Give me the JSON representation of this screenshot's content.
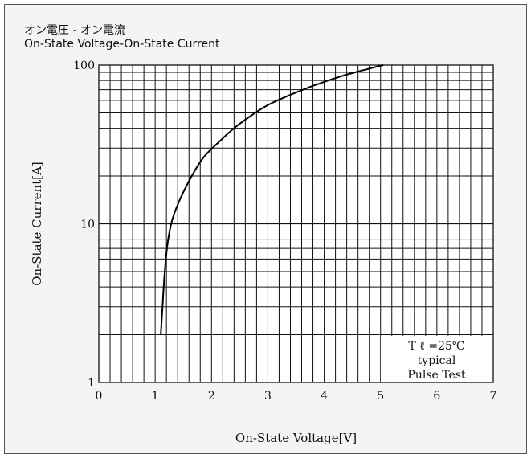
{
  "chart_data": {
    "type": "line",
    "title": "オン電圧 - オン電流",
    "subtitle": "On-State Voltage-On-State Current",
    "xlabel": "On-State Voltage[V]",
    "ylabel": "On-State Current[A]",
    "xlim": [
      0,
      7
    ],
    "ylim": [
      1,
      100
    ],
    "yscale": "log",
    "grid": true,
    "x_ticks": [
      "0",
      "1",
      "2",
      "3",
      "4",
      "5",
      "6",
      "7"
    ],
    "y_ticks": [
      "1",
      "10",
      "100"
    ],
    "series": [
      {
        "x": [
          1.1,
          1.13,
          1.17,
          1.22,
          1.3,
          1.45,
          1.65,
          1.85,
          2.1,
          2.4,
          2.7,
          3.0,
          3.4,
          3.8,
          4.3,
          4.7,
          5.05
        ],
        "y": [
          2.0,
          3.0,
          5.0,
          7.5,
          10.5,
          14.5,
          20.0,
          26.0,
          32.0,
          40.0,
          48.0,
          56.0,
          65.0,
          74.0,
          85.0,
          93.0,
          100.0
        ]
      }
    ],
    "annotation": {
      "line1": "T ℓ =25℃",
      "line2": "typical",
      "line3": "Pulse Test"
    }
  }
}
